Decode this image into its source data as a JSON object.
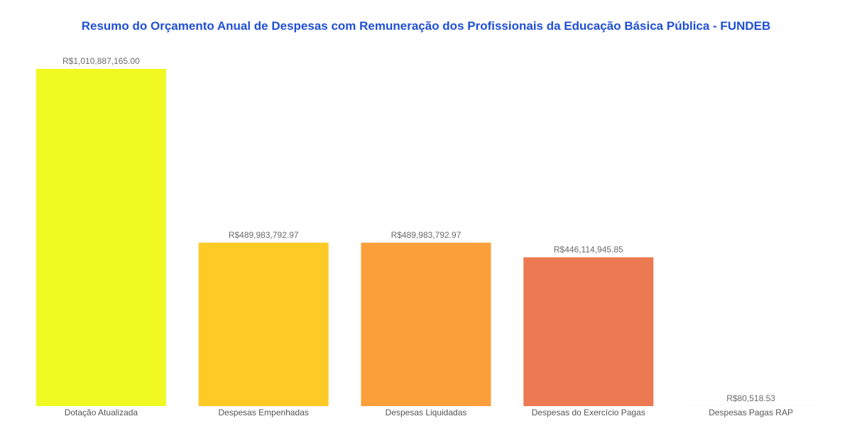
{
  "chart_data": {
    "type": "bar",
    "title": "Resumo do Orçamento Anual de Despesas com Remuneração dos Profissionais da Educação Básica Pública - FUNDEB",
    "xlabel": "",
    "ylabel": "",
    "categories": [
      "Dotação Atualizada",
      "Despesas Empenhadas",
      "Despesas Liquidadas",
      "Despesas do Exercício Pagas",
      "Despesas Pagas RAP"
    ],
    "values": [
      1010887165.0,
      489983792.97,
      489983792.97,
      446114945.85,
      80518.53
    ],
    "value_labels": [
      "R$1,010,887,165.00",
      "R$489,983,792.97",
      "R$489,983,792.97",
      "R$446,114,945.85",
      "R$80,518.53"
    ],
    "colors": [
      "#f0f921",
      "#fdca26",
      "#fb9f3a",
      "#ed7953",
      "#d8576b"
    ],
    "title_color": "#1f4fd6",
    "ylim": [
      0,
      1010887165.0
    ],
    "grid": false,
    "legend": "none"
  }
}
